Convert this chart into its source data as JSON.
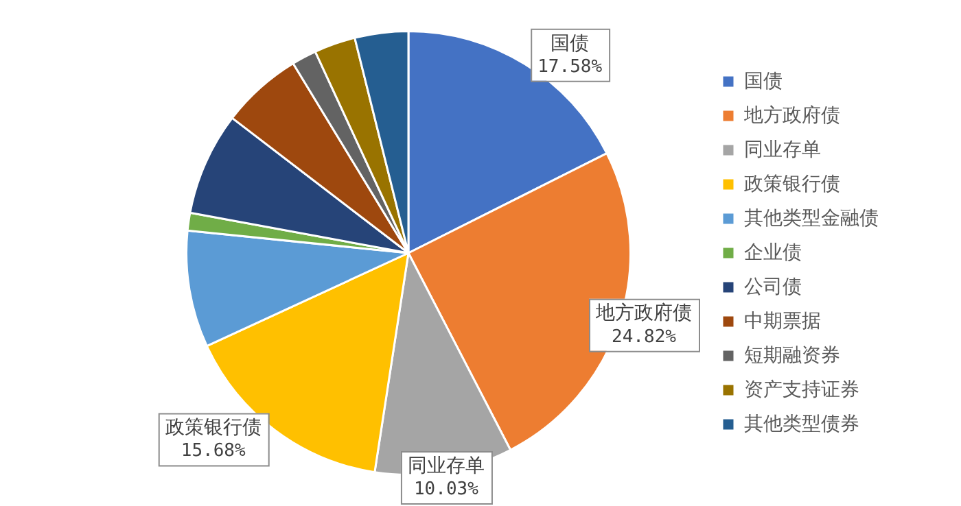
{
  "chart_data": {
    "type": "pie",
    "categories": [
      "国债",
      "地方政府债",
      "同业存单",
      "政策银行债",
      "其他类型金融债",
      "企业债",
      "公司债",
      "中期票据",
      "短期融资券",
      "资产支持证券",
      "其他类型债券"
    ],
    "values": [
      17.58,
      24.82,
      10.03,
      15.68,
      8.5,
      1.3,
      7.5,
      5.9,
      1.8,
      3.0,
      3.89
    ],
    "colors": [
      "#4472c4",
      "#ed7d31",
      "#a5a5a5",
      "#ffc000",
      "#5b9bd5",
      "#70ad47",
      "#264478",
      "#9e480e",
      "#636363",
      "#997300",
      "#255e91"
    ],
    "value_labels": [
      "17.58%",
      "24.82%",
      "10.03%",
      "15.68%",
      null,
      null,
      null,
      null,
      null,
      null,
      null
    ],
    "legend": "right"
  }
}
